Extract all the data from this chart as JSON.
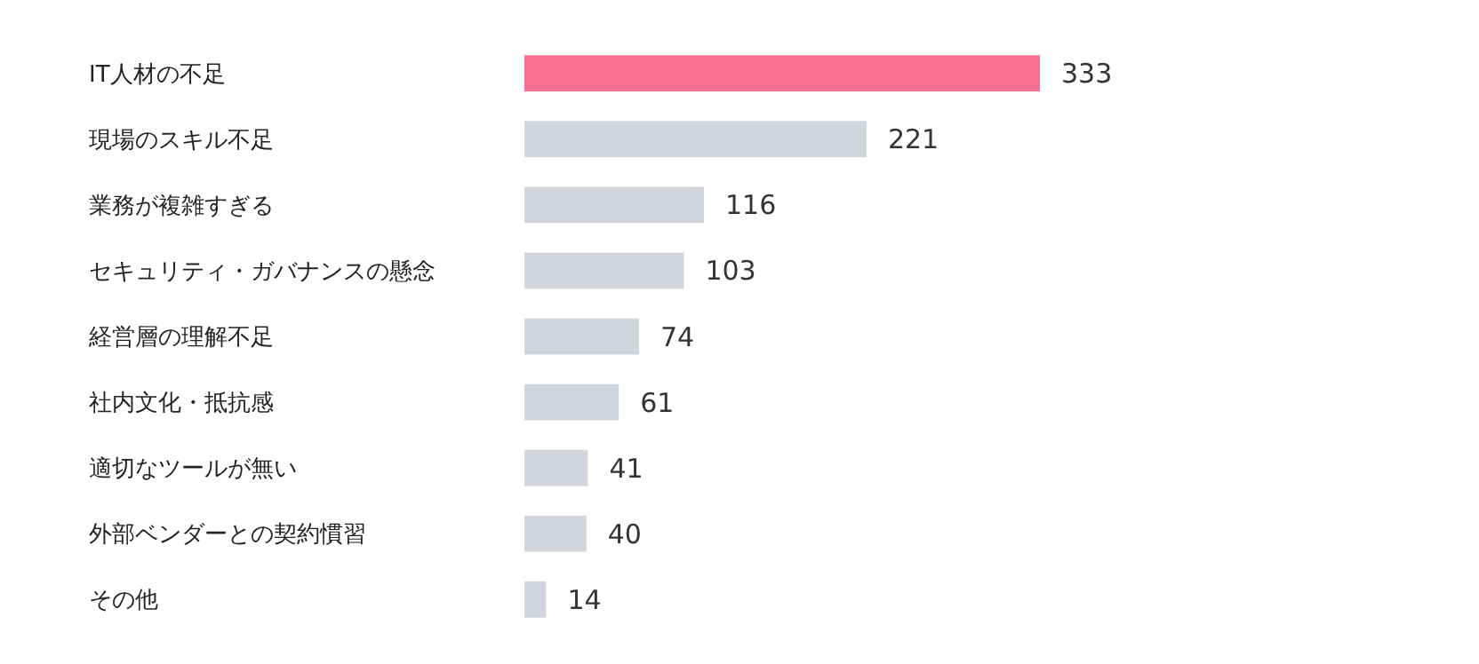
{
  "chart_data": {
    "type": "bar",
    "orientation": "horizontal",
    "categories": [
      "IT人材の不足",
      "現場のスキル不足",
      "業務が複雑すぎる",
      "セキュリティ・ガバナンスの懸念",
      "経営層の理解不足",
      "社内文化・抵抗感",
      "適切なツールが無い",
      "外部ベンダーとの契約慣習",
      "その他"
    ],
    "values": [
      333,
      221,
      116,
      103,
      74,
      61,
      41,
      40,
      14
    ],
    "colors": [
      "#f7708f",
      "#d1d5dc",
      "#d1d5dc",
      "#d1d5dc",
      "#d1d5dc",
      "#d1d5dc",
      "#d1d5dc",
      "#d1d5dc",
      "#d1d5dc"
    ],
    "data_labels": true
  }
}
